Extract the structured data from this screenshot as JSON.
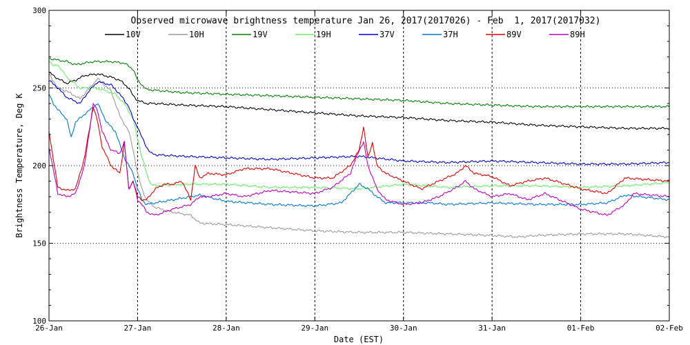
{
  "chart_data": {
    "type": "line",
    "title": "Observed microwave brightness temperature Jan 26, 2017(2017026) - Feb  1, 2017(2017032)",
    "xlabel": "Date (EST)",
    "ylabel": "Brightness Temperature, Deg K",
    "ylim": [
      100,
      300
    ],
    "xlim": [
      0,
      7
    ],
    "yticks": [
      100,
      150,
      200,
      250,
      300
    ],
    "xticks": [
      0,
      1,
      2,
      3,
      4,
      5,
      6,
      7
    ],
    "xtick_labels": [
      "26-Jan",
      "27-Jan",
      "28-Jan",
      "29-Jan",
      "30-Jan",
      "31-Jan",
      "01-Feb",
      "02-Feb"
    ],
    "grid": "dotted",
    "legend_position": "top",
    "series": [
      {
        "name": "10V",
        "color": "#000000",
        "x": [
          0,
          0.1,
          0.2,
          0.3,
          0.4,
          0.55,
          0.7,
          0.8,
          0.9,
          0.95,
          1.0,
          1.1,
          1.2,
          1.5,
          2.0,
          2.5,
          3.0,
          3.5,
          4.0,
          4.5,
          5.0,
          5.5,
          6.0,
          6.5,
          7.0
        ],
        "y": [
          260,
          256,
          253,
          255,
          258,
          259,
          257,
          255,
          250,
          245,
          242,
          240,
          240,
          239,
          238,
          236,
          234,
          232,
          231,
          229,
          228,
          226,
          225,
          224,
          224
        ]
      },
      {
        "name": "10H",
        "color": "#999999",
        "x": [
          0,
          0.1,
          0.2,
          0.35,
          0.55,
          0.7,
          0.8,
          0.9,
          0.95,
          1.0,
          1.05,
          1.1,
          1.2,
          1.4,
          1.6,
          1.7,
          2.0,
          2.5,
          3.0,
          3.5,
          4.0,
          4.5,
          5.0,
          5.3,
          5.5,
          6.0,
          6.5,
          7.0
        ],
        "y": [
          259,
          250,
          248,
          243,
          256,
          248,
          232,
          222,
          210,
          195,
          185,
          178,
          173,
          170,
          168,
          163,
          162,
          160,
          158,
          157,
          157,
          156,
          155,
          154,
          155,
          156,
          156,
          154
        ]
      },
      {
        "name": "19V",
        "color": "#008000",
        "x": [
          0,
          0.1,
          0.2,
          0.3,
          0.5,
          0.7,
          0.85,
          0.95,
          1.0,
          1.1,
          1.5,
          2.0,
          2.5,
          3.0,
          3.5,
          4.0,
          4.5,
          5.0,
          5.5,
          6.0,
          6.5,
          7.0
        ],
        "y": [
          269,
          268,
          267,
          265,
          267,
          267,
          266,
          262,
          255,
          249,
          247,
          246,
          245,
          244,
          243,
          242,
          240,
          239,
          238,
          238,
          238,
          238
        ]
      },
      {
        "name": "19H",
        "color": "#66ee66",
        "x": [
          0,
          0.05,
          0.1,
          0.2,
          0.35,
          0.5,
          0.6,
          0.75,
          0.85,
          0.95,
          1.05,
          1.1,
          1.15,
          1.2,
          1.5,
          2.0,
          2.5,
          3.0,
          3.5,
          4.0,
          4.5,
          5.0,
          5.5,
          6.0,
          6.5,
          7.0
        ],
        "y": [
          268,
          264,
          265,
          257,
          250,
          250,
          249,
          246,
          240,
          230,
          205,
          195,
          188,
          187,
          188,
          188,
          186,
          186,
          185,
          188,
          186,
          187,
          187,
          186,
          187,
          189
        ]
      },
      {
        "name": "37V",
        "color": "#0000cc",
        "x": [
          0,
          0.1,
          0.2,
          0.35,
          0.45,
          0.55,
          0.7,
          0.8,
          0.9,
          0.95,
          1.0,
          1.05,
          1.1,
          1.15,
          1.2,
          1.5,
          2.0,
          2.5,
          3.0,
          3.5,
          4.0,
          4.5,
          5.0,
          5.5,
          6.0,
          6.5,
          7.0
        ],
        "y": [
          255,
          250,
          244,
          240,
          248,
          254,
          252,
          246,
          238,
          230,
          225,
          218,
          212,
          208,
          207,
          206,
          205,
          204,
          205,
          206,
          203,
          202,
          203,
          202,
          201,
          201,
          202
        ]
      },
      {
        "name": "37H",
        "color": "#0077cc",
        "x": [
          0,
          0.05,
          0.1,
          0.2,
          0.25,
          0.3,
          0.4,
          0.55,
          0.65,
          0.75,
          0.85,
          0.95,
          1.0,
          1.05,
          1.1,
          1.2,
          1.4,
          1.6,
          1.7,
          2.0,
          2.5,
          3.0,
          3.3,
          3.4,
          3.5,
          3.6,
          3.7,
          3.8,
          4.0,
          4.3,
          4.5,
          5.0,
          5.5,
          6.0,
          6.3,
          6.5,
          7.0
        ],
        "y": [
          246,
          240,
          236,
          230,
          218,
          228,
          233,
          240,
          228,
          222,
          205,
          195,
          185,
          178,
          175,
          176,
          178,
          180,
          181,
          177,
          175,
          174,
          176,
          182,
          188,
          185,
          180,
          176,
          176,
          176,
          175,
          176,
          175,
          175,
          176,
          181,
          178
        ]
      },
      {
        "name": "89V",
        "color": "#dd0000",
        "x": [
          0,
          0.1,
          0.2,
          0.3,
          0.4,
          0.5,
          0.55,
          0.6,
          0.7,
          0.8,
          0.85,
          0.9,
          0.95,
          1.0,
          1.05,
          1.1,
          1.2,
          1.3,
          1.4,
          1.5,
          1.6,
          1.65,
          1.7,
          1.8,
          2.0,
          2.2,
          2.5,
          3.0,
          3.2,
          3.4,
          3.5,
          3.55,
          3.6,
          3.65,
          3.7,
          3.8,
          4.0,
          4.2,
          4.4,
          4.6,
          4.7,
          4.8,
          5.0,
          5.2,
          5.4,
          5.6,
          6.0,
          6.3,
          6.5,
          7.0
        ],
        "y": [
          222,
          186,
          184,
          185,
          205,
          238,
          228,
          212,
          200,
          195,
          215,
          185,
          190,
          180,
          178,
          178,
          185,
          188,
          188,
          190,
          178,
          200,
          192,
          195,
          194,
          198,
          198,
          192,
          192,
          200,
          210,
          225,
          205,
          215,
          200,
          195,
          190,
          185,
          190,
          195,
          200,
          195,
          193,
          187,
          190,
          192,
          185,
          182,
          192,
          190
        ]
      },
      {
        "name": "89H",
        "color": "#bb00bb",
        "x": [
          0,
          0.1,
          0.2,
          0.3,
          0.4,
          0.5,
          0.55,
          0.6,
          0.7,
          0.8,
          0.85,
          0.9,
          0.95,
          1.0,
          1.05,
          1.1,
          1.2,
          1.4,
          1.6,
          1.7,
          1.8,
          2.0,
          2.2,
          2.5,
          3.0,
          3.2,
          3.4,
          3.5,
          3.55,
          3.6,
          3.7,
          3.8,
          4.0,
          4.2,
          4.4,
          4.6,
          4.7,
          4.8,
          5.0,
          5.2,
          5.4,
          5.6,
          6.0,
          6.3,
          6.5,
          6.6,
          7.0
        ],
        "y": [
          212,
          182,
          180,
          182,
          200,
          240,
          235,
          222,
          210,
          208,
          215,
          185,
          190,
          178,
          175,
          170,
          168,
          172,
          175,
          180,
          180,
          182,
          180,
          184,
          182,
          186,
          195,
          210,
          215,
          200,
          185,
          178,
          175,
          176,
          180,
          186,
          190,
          185,
          180,
          182,
          178,
          182,
          172,
          168,
          175,
          182,
          180
        ]
      }
    ]
  }
}
